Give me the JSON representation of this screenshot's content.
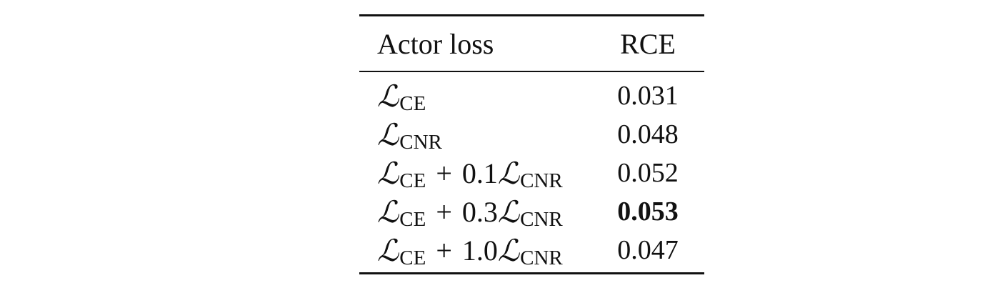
{
  "table": {
    "headers": {
      "loss": "Actor loss",
      "rce": "RCE"
    },
    "rows": [
      {
        "terms": [
          {
            "symbol": "ℒ",
            "subscript": "CE"
          }
        ],
        "rce": "0.031",
        "bold": false
      },
      {
        "terms": [
          {
            "symbol": "ℒ",
            "subscript": "CNR"
          }
        ],
        "rce": "0.048",
        "bold": false
      },
      {
        "terms": [
          {
            "symbol": "ℒ",
            "subscript": "CE"
          },
          {
            "operator": "+",
            "coefficient": "0.1",
            "symbol": "ℒ",
            "subscript": "CNR"
          }
        ],
        "rce": "0.052",
        "bold": false
      },
      {
        "terms": [
          {
            "symbol": "ℒ",
            "subscript": "CE"
          },
          {
            "operator": "+",
            "coefficient": "0.3",
            "symbol": "ℒ",
            "subscript": "CNR"
          }
        ],
        "rce": "0.053",
        "bold": true
      },
      {
        "terms": [
          {
            "symbol": "ℒ",
            "subscript": "CE"
          },
          {
            "operator": "+",
            "coefficient": "1.0",
            "symbol": "ℒ",
            "subscript": "CNR"
          }
        ],
        "rce": "0.047",
        "bold": false
      }
    ]
  }
}
